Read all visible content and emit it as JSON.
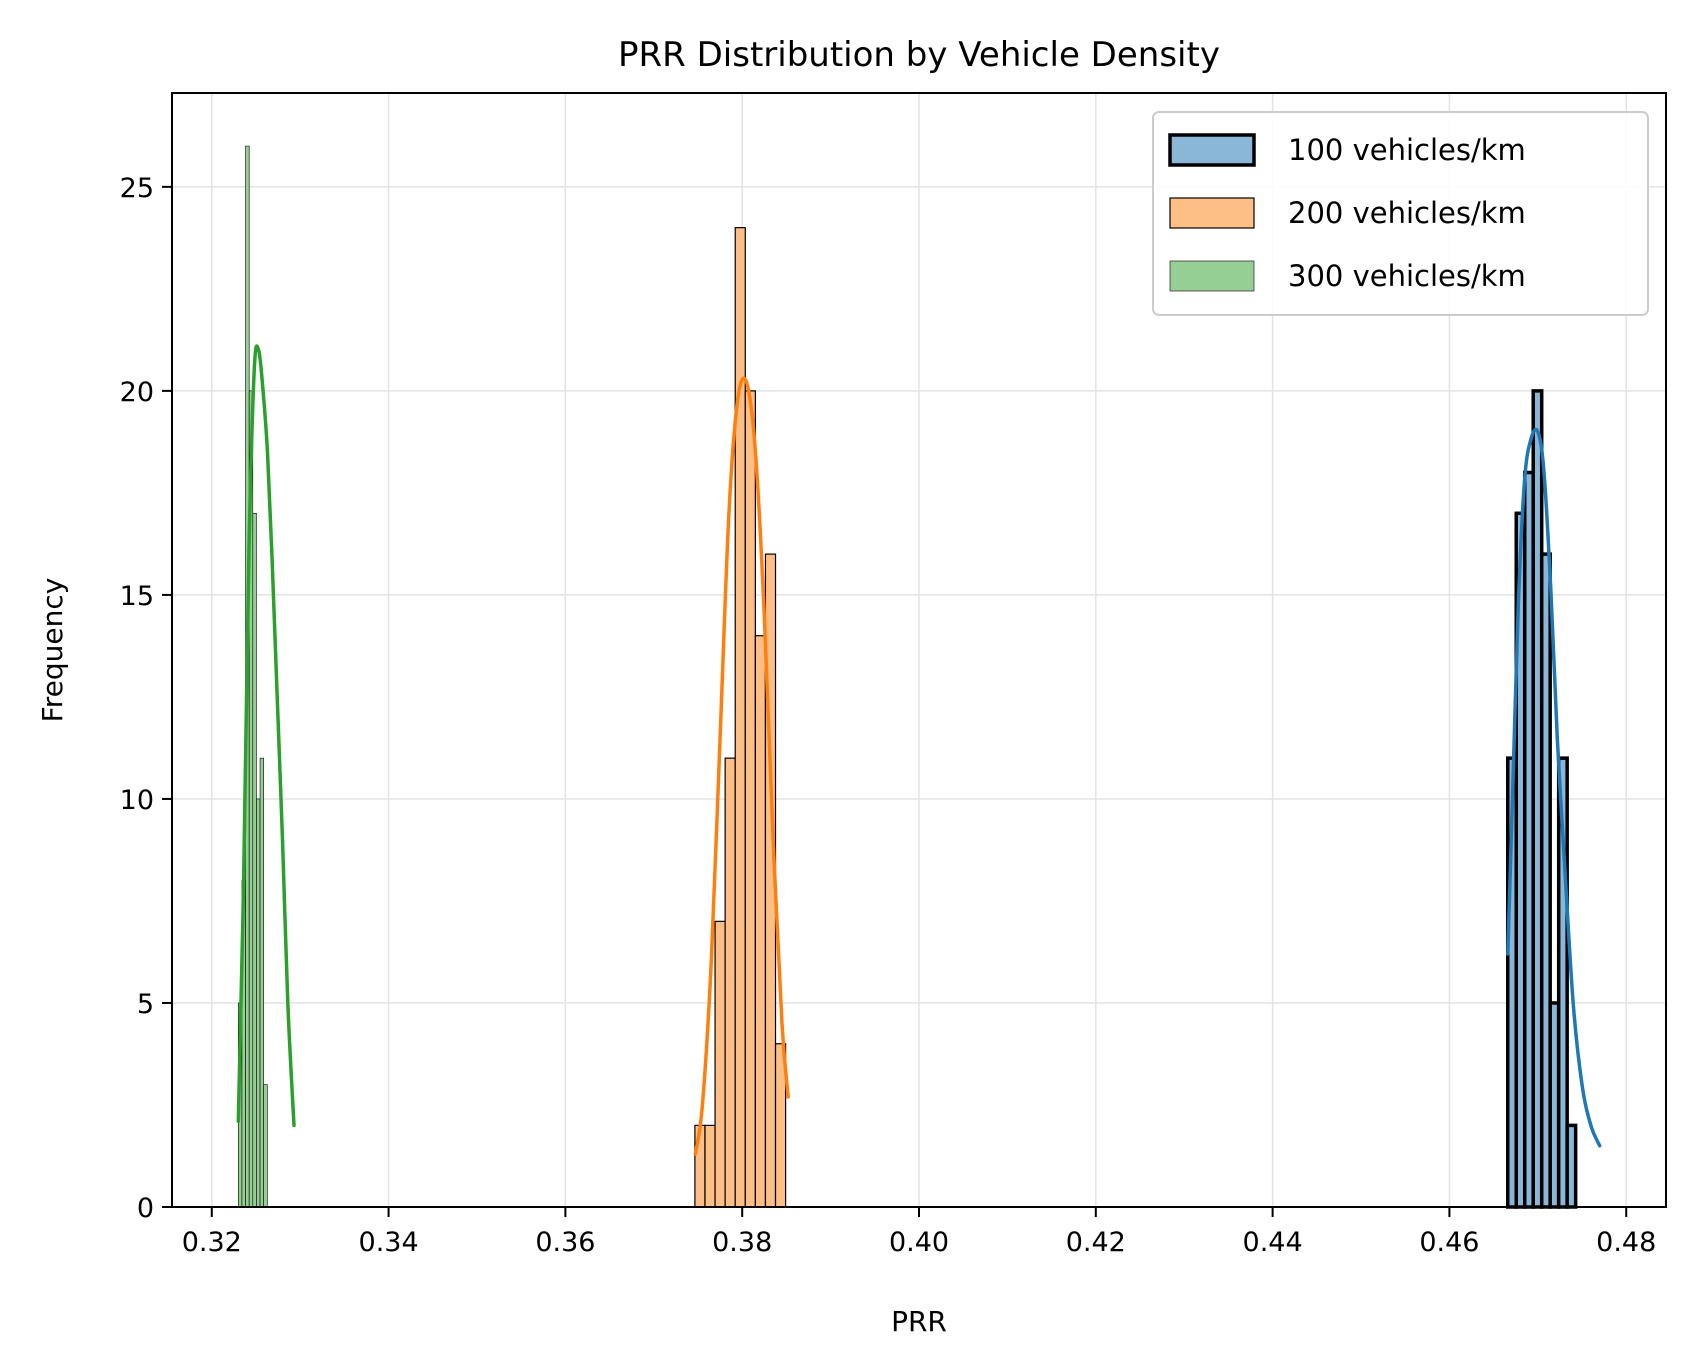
{
  "chart_data": {
    "type": "histogram",
    "title": "PRR Distribution by Vehicle Density",
    "xlabel": "PRR",
    "ylabel": "Frequency",
    "xlim": [
      0.3155,
      0.4845
    ],
    "ylim": [
      0,
      27.3
    ],
    "xticks": [
      "0.32",
      "0.34",
      "0.36",
      "0.38",
      "0.40",
      "0.42",
      "0.44",
      "0.46",
      "0.48"
    ],
    "yticks": [
      "0",
      "5",
      "10",
      "15",
      "20",
      "25"
    ],
    "grid": true,
    "legend_position": "top-right",
    "series": [
      {
        "name": "100 vehicles/km",
        "fill": "#8ab6d8",
        "line": "#1f77b4",
        "edge": "#000000",
        "edge_width": 3.5,
        "bin_start": 0.4666,
        "bin_width": 0.00096,
        "counts": [
          11,
          17,
          18,
          20,
          16,
          5,
          11,
          2
        ],
        "kde": [
          [
            0.4666,
            6.2
          ],
          [
            0.4672,
            10.5
          ],
          [
            0.4678,
            14.8
          ],
          [
            0.4685,
            17.8
          ],
          [
            0.4692,
            18.8
          ],
          [
            0.47,
            19.0
          ],
          [
            0.4707,
            18.0
          ],
          [
            0.4715,
            15.0
          ],
          [
            0.4722,
            11.5
          ],
          [
            0.473,
            8.5
          ],
          [
            0.474,
            5.0
          ],
          [
            0.475,
            3.0
          ],
          [
            0.476,
            2.0
          ],
          [
            0.477,
            1.5
          ]
        ]
      },
      {
        "name": "200 vehicles/km",
        "fill": "#fdbf86",
        "line": "#ff7f0e",
        "edge": "#000000",
        "edge_width": 1.2,
        "bin_start": 0.37465,
        "bin_width": 0.00114,
        "counts": [
          2,
          2,
          7,
          11,
          24,
          20,
          14,
          16,
          4
        ],
        "kde": [
          [
            0.3747,
            1.3
          ],
          [
            0.3755,
            2.5
          ],
          [
            0.3765,
            6.0
          ],
          [
            0.3775,
            11.5
          ],
          [
            0.3785,
            17.0
          ],
          [
            0.3795,
            19.8
          ],
          [
            0.3805,
            20.2
          ],
          [
            0.3815,
            18.5
          ],
          [
            0.3825,
            14.5
          ],
          [
            0.3835,
            9.0
          ],
          [
            0.3845,
            4.5
          ],
          [
            0.3852,
            2.7
          ]
        ]
      },
      {
        "name": "300 vehicles/km",
        "fill": "#96cf93",
        "line": "#2ca02c",
        "edge": "#000000",
        "edge_width": 0.6,
        "bin_start": 0.323,
        "bin_width": 0.00041,
        "counts": [
          5,
          8,
          26,
          20,
          17,
          10,
          11,
          3
        ],
        "kde": [
          [
            0.323,
            2.1
          ],
          [
            0.3236,
            8.0
          ],
          [
            0.3242,
            16.0
          ],
          [
            0.3248,
            20.5
          ],
          [
            0.3253,
            21.0
          ],
          [
            0.3258,
            20.0
          ],
          [
            0.3263,
            18.5
          ],
          [
            0.3268,
            16.0
          ],
          [
            0.3274,
            12.5
          ],
          [
            0.328,
            9.0
          ],
          [
            0.3286,
            5.0
          ],
          [
            0.3293,
            2.0
          ]
        ]
      }
    ]
  }
}
